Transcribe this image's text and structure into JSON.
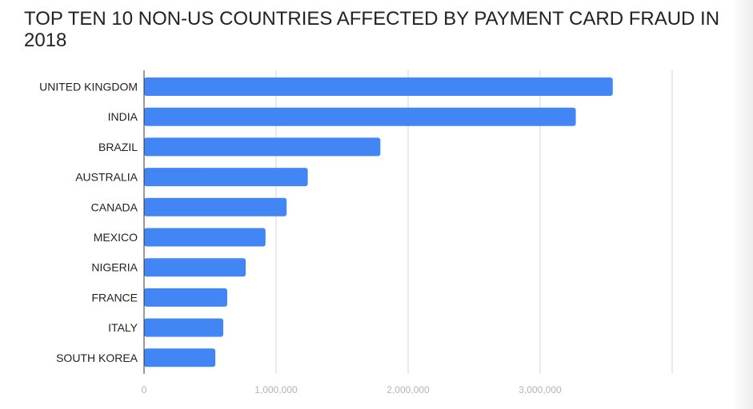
{
  "chart_data": {
    "type": "bar",
    "orientation": "horizontal",
    "title": "TOP TEN 10 NON-US COUNTRIES AFFECTED BY PAYMENT CARD FRAUD IN 2018",
    "categories": [
      "UNITED KINGDOM",
      "INDIA",
      "BRAZIL",
      "AUSTRALIA",
      "CANADA",
      "MEXICO",
      "NIGERIA",
      "FRANCE",
      "ITALY",
      "SOUTH KOREA"
    ],
    "values": [
      3550000,
      3270000,
      1790000,
      1240000,
      1080000,
      920000,
      770000,
      630000,
      600000,
      540000
    ],
    "xlim": [
      0,
      4000000
    ],
    "xticks": [
      0,
      1000000,
      2000000,
      3000000
    ],
    "xtick_labels": [
      "0",
      "1,000,000",
      "2,000,000",
      "3,000,000"
    ],
    "bar_color": "#4285f4",
    "grid": true,
    "legend": "none"
  }
}
